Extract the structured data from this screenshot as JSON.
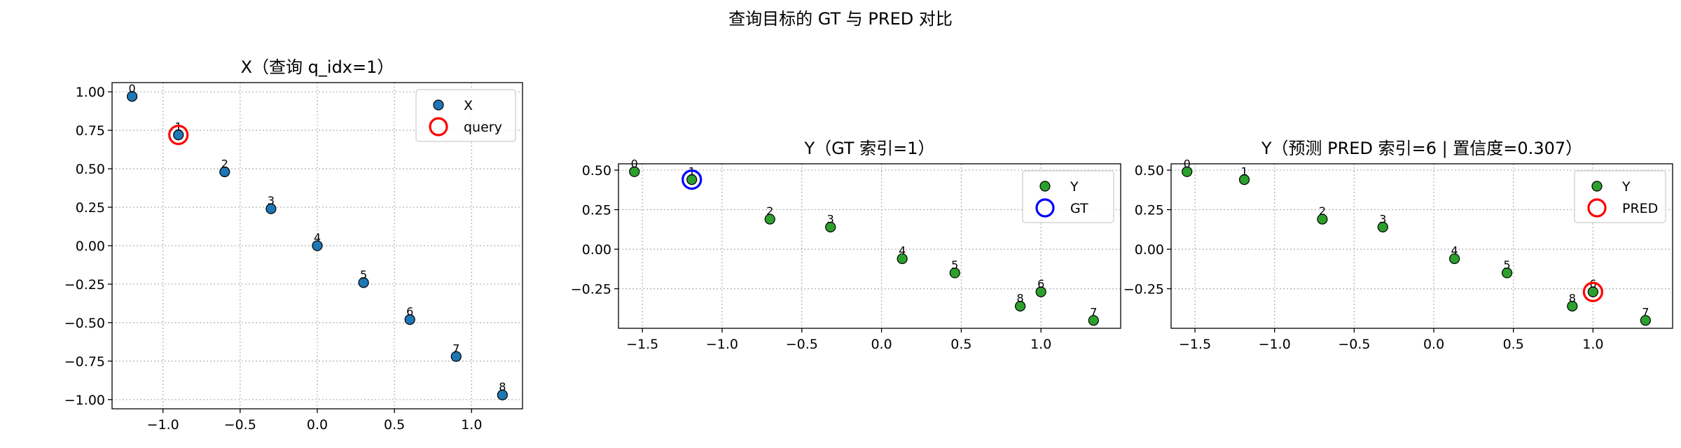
{
  "figure": {
    "suptitle": "查询目标的 GT 与 PRED 对比"
  },
  "colors": {
    "x_points": "#1f77b4",
    "y_points": "#2ca02c",
    "query_ring": "#ff0000",
    "gt_ring": "#0000ff",
    "pred_ring": "#ff0000",
    "grid": "#b0b0b0"
  },
  "chart_data": [
    {
      "type": "scatter",
      "title": "X（查询 q_idx=1）",
      "xlim": [
        -1.33,
        1.33
      ],
      "ylim": [
        -1.06,
        1.06
      ],
      "xticks": [
        -1.0,
        -0.5,
        0.0,
        0.5,
        1.0
      ],
      "xtick_labels": [
        "−1.0",
        "−0.5",
        "0.0",
        "0.5",
        "1.0"
      ],
      "yticks": [
        1.0,
        0.75,
        0.5,
        0.25,
        0.0,
        -0.25,
        -0.5,
        -0.75,
        -1.0
      ],
      "ytick_labels": [
        "1.00",
        "0.75",
        "0.50",
        "0.25",
        "0.00",
        "−0.25",
        "−0.50",
        "−0.75",
        "−1.00"
      ],
      "grid": true,
      "legend_position": "top-right",
      "series": [
        {
          "name": "X",
          "color": "#1f77b4",
          "points": [
            {
              "x": -1.2,
              "y": 0.97,
              "label": "0"
            },
            {
              "x": -0.9,
              "y": 0.72,
              "label": "1"
            },
            {
              "x": -0.6,
              "y": 0.48,
              "label": "2"
            },
            {
              "x": -0.3,
              "y": 0.24,
              "label": "3"
            },
            {
              "x": 0.0,
              "y": 0.0,
              "label": "4"
            },
            {
              "x": 0.3,
              "y": -0.24,
              "label": "5"
            },
            {
              "x": 0.6,
              "y": -0.48,
              "label": "6"
            },
            {
              "x": 0.9,
              "y": -0.72,
              "label": "7"
            },
            {
              "x": 1.2,
              "y": -0.97,
              "label": "8"
            }
          ]
        }
      ],
      "highlight": {
        "name": "query",
        "x": -0.9,
        "y": 0.72,
        "color": "#ff0000"
      }
    },
    {
      "type": "scatter",
      "title": "Y（GT 索引=1）",
      "xlim": [
        -1.65,
        1.5
      ],
      "ylim": [
        -0.5,
        0.54
      ],
      "xticks": [
        -1.5,
        -1.0,
        -0.5,
        0.0,
        0.5,
        1.0
      ],
      "xtick_labels": [
        "−1.5",
        "−1.0",
        "−0.5",
        "0.0",
        "0.5",
        "1.0"
      ],
      "yticks": [
        0.5,
        0.25,
        0.0,
        -0.25
      ],
      "ytick_labels": [
        "0.50",
        "0.25",
        "0.00",
        "−0.25"
      ],
      "grid": true,
      "legend_position": "top-right",
      "series": [
        {
          "name": "Y",
          "color": "#2ca02c",
          "points": [
            {
              "x": -1.55,
              "y": 0.49,
              "label": "0"
            },
            {
              "x": -1.19,
              "y": 0.44,
              "label": "1"
            },
            {
              "x": -0.7,
              "y": 0.19,
              "label": "2"
            },
            {
              "x": -0.32,
              "y": 0.14,
              "label": "3"
            },
            {
              "x": 0.13,
              "y": -0.06,
              "label": "4"
            },
            {
              "x": 0.46,
              "y": -0.15,
              "label": "5"
            },
            {
              "x": 1.0,
              "y": -0.27,
              "label": "6"
            },
            {
              "x": 1.33,
              "y": -0.45,
              "label": "7"
            },
            {
              "x": 0.87,
              "y": -0.36,
              "label": "8"
            }
          ]
        }
      ],
      "highlight": {
        "name": "GT",
        "x": -1.19,
        "y": 0.44,
        "color": "#0000ff"
      }
    },
    {
      "type": "scatter",
      "title": "Y（预测 PRED 索引=6 | 置信度=0.307）",
      "xlim": [
        -1.65,
        1.5
      ],
      "ylim": [
        -0.5,
        0.54
      ],
      "xticks": [
        -1.5,
        -1.0,
        -0.5,
        0.0,
        0.5,
        1.0
      ],
      "xtick_labels": [
        "−1.5",
        "−1.0",
        "−0.5",
        "0.0",
        "0.5",
        "1.0"
      ],
      "yticks": [
        0.5,
        0.25,
        0.0,
        -0.25
      ],
      "ytick_labels": [
        "0.50",
        "0.25",
        "0.00",
        "−0.25"
      ],
      "grid": true,
      "legend_position": "top-right",
      "series": [
        {
          "name": "Y",
          "color": "#2ca02c",
          "points": [
            {
              "x": -1.55,
              "y": 0.49,
              "label": "0"
            },
            {
              "x": -1.19,
              "y": 0.44,
              "label": "1"
            },
            {
              "x": -0.7,
              "y": 0.19,
              "label": "2"
            },
            {
              "x": -0.32,
              "y": 0.14,
              "label": "3"
            },
            {
              "x": 0.13,
              "y": -0.06,
              "label": "4"
            },
            {
              "x": 0.46,
              "y": -0.15,
              "label": "5"
            },
            {
              "x": 1.0,
              "y": -0.27,
              "label": "6"
            },
            {
              "x": 1.33,
              "y": -0.45,
              "label": "7"
            },
            {
              "x": 0.87,
              "y": -0.36,
              "label": "8"
            }
          ]
        }
      ],
      "highlight": {
        "name": "PRED",
        "x": 1.0,
        "y": -0.27,
        "color": "#ff0000"
      }
    }
  ]
}
